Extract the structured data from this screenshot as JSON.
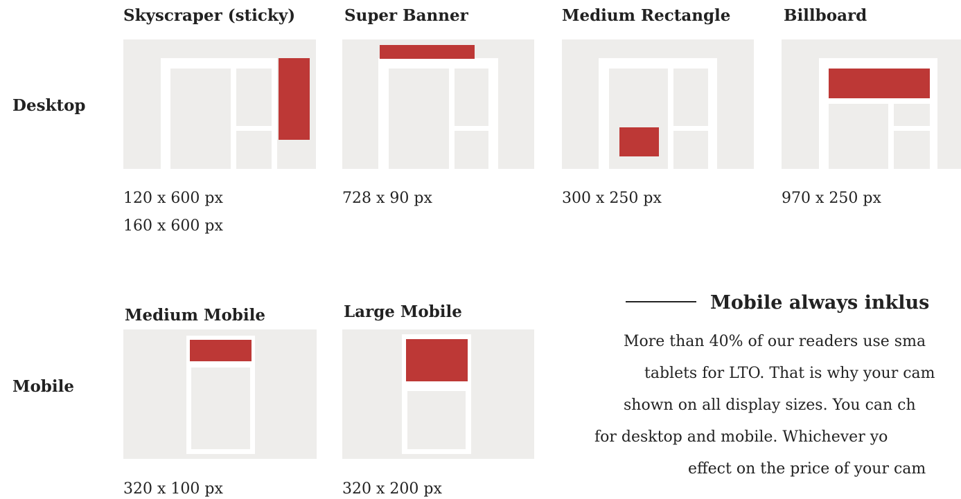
{
  "desktop": {
    "label": "Desktop",
    "formats": [
      {
        "title": "Skyscraper (sticky)",
        "sizes": [
          "120 x 600 px",
          "160 x 600 px"
        ]
      },
      {
        "title": "Super Banner",
        "sizes": [
          "728 x 90 px"
        ]
      },
      {
        "title": "Medium Rectangle",
        "sizes": [
          "300 x 250 px"
        ]
      },
      {
        "title": "Billboard",
        "sizes": [
          "970 x 250 px"
        ]
      }
    ]
  },
  "mobile": {
    "label": "Mobile",
    "formats": [
      {
        "title": "Medium Mobile",
        "sizes": [
          "320 x 100 px"
        ]
      },
      {
        "title": "Large Mobile",
        "sizes": [
          "320 x 200 px"
        ]
      }
    ]
  },
  "promo": {
    "heading": "Mobile always inklus",
    "lines": [
      "More than 40% of our readers use sma",
      "tablets for LTO. That is why your cam",
      "shown on all display sizes. You can ch",
      "for desktop and mobile. Whichever yo",
      "effect on the price of your cam"
    ]
  }
}
